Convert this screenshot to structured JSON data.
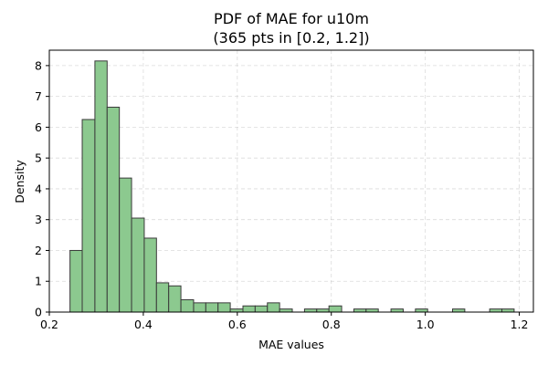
{
  "chart_data": {
    "type": "bar",
    "title": "PDF of MAE for u10m",
    "subtitle": "(365 pts in [0.2, 1.2])",
    "xlabel": "MAE values",
    "ylabel": "Density",
    "xlim": [
      0.2,
      1.23
    ],
    "ylim": [
      0,
      8.5
    ],
    "xticks": [
      0.2,
      0.4,
      0.6,
      0.8,
      1.0,
      1.2
    ],
    "xtick_labels": [
      "0.2",
      "0.4",
      "0.6",
      "0.8",
      "1.0",
      "1.2"
    ],
    "yticks": [
      0,
      1,
      2,
      3,
      4,
      5,
      6,
      7,
      8
    ],
    "ytick_labels": [
      "0",
      "1",
      "2",
      "3",
      "4",
      "5",
      "6",
      "7",
      "8"
    ],
    "grid": true,
    "bar_color": "#8cc98f",
    "edge_color": "#3a3a3a",
    "bins": [
      {
        "x0": 0.244,
        "x1": 0.27,
        "density": 2.0
      },
      {
        "x0": 0.27,
        "x1": 0.297,
        "density": 6.25
      },
      {
        "x0": 0.297,
        "x1": 0.323,
        "density": 8.15
      },
      {
        "x0": 0.323,
        "x1": 0.349,
        "density": 6.65
      },
      {
        "x0": 0.349,
        "x1": 0.375,
        "density": 4.35
      },
      {
        "x0": 0.375,
        "x1": 0.402,
        "density": 3.05
      },
      {
        "x0": 0.402,
        "x1": 0.428,
        "density": 2.4
      },
      {
        "x0": 0.428,
        "x1": 0.454,
        "density": 0.95
      },
      {
        "x0": 0.454,
        "x1": 0.48,
        "density": 0.85
      },
      {
        "x0": 0.48,
        "x1": 0.507,
        "density": 0.4
      },
      {
        "x0": 0.507,
        "x1": 0.533,
        "density": 0.3
      },
      {
        "x0": 0.533,
        "x1": 0.559,
        "density": 0.3
      },
      {
        "x0": 0.559,
        "x1": 0.585,
        "density": 0.3
      },
      {
        "x0": 0.585,
        "x1": 0.612,
        "density": 0.1
      },
      {
        "x0": 0.612,
        "x1": 0.638,
        "density": 0.2
      },
      {
        "x0": 0.638,
        "x1": 0.664,
        "density": 0.2
      },
      {
        "x0": 0.664,
        "x1": 0.69,
        "density": 0.3
      },
      {
        "x0": 0.69,
        "x1": 0.717,
        "density": 0.1
      },
      {
        "x0": 0.717,
        "x1": 0.743,
        "density": 0.0
      },
      {
        "x0": 0.743,
        "x1": 0.769,
        "density": 0.1
      },
      {
        "x0": 0.769,
        "x1": 0.795,
        "density": 0.1
      },
      {
        "x0": 0.795,
        "x1": 0.822,
        "density": 0.2
      },
      {
        "x0": 0.822,
        "x1": 0.848,
        "density": 0.0
      },
      {
        "x0": 0.848,
        "x1": 0.874,
        "density": 0.1
      },
      {
        "x0": 0.874,
        "x1": 0.9,
        "density": 0.1
      },
      {
        "x0": 0.9,
        "x1": 0.927,
        "density": 0.0
      },
      {
        "x0": 0.927,
        "x1": 0.953,
        "density": 0.1
      },
      {
        "x0": 0.953,
        "x1": 0.979,
        "density": 0.0
      },
      {
        "x0": 0.979,
        "x1": 1.005,
        "density": 0.1
      },
      {
        "x0": 1.005,
        "x1": 1.032,
        "density": 0.0
      },
      {
        "x0": 1.032,
        "x1": 1.058,
        "density": 0.0
      },
      {
        "x0": 1.058,
        "x1": 1.084,
        "density": 0.1
      },
      {
        "x0": 1.084,
        "x1": 1.11,
        "density": 0.0
      },
      {
        "x0": 1.11,
        "x1": 1.137,
        "density": 0.0
      },
      {
        "x0": 1.137,
        "x1": 1.163,
        "density": 0.1
      },
      {
        "x0": 1.163,
        "x1": 1.189,
        "density": 0.1
      }
    ]
  }
}
